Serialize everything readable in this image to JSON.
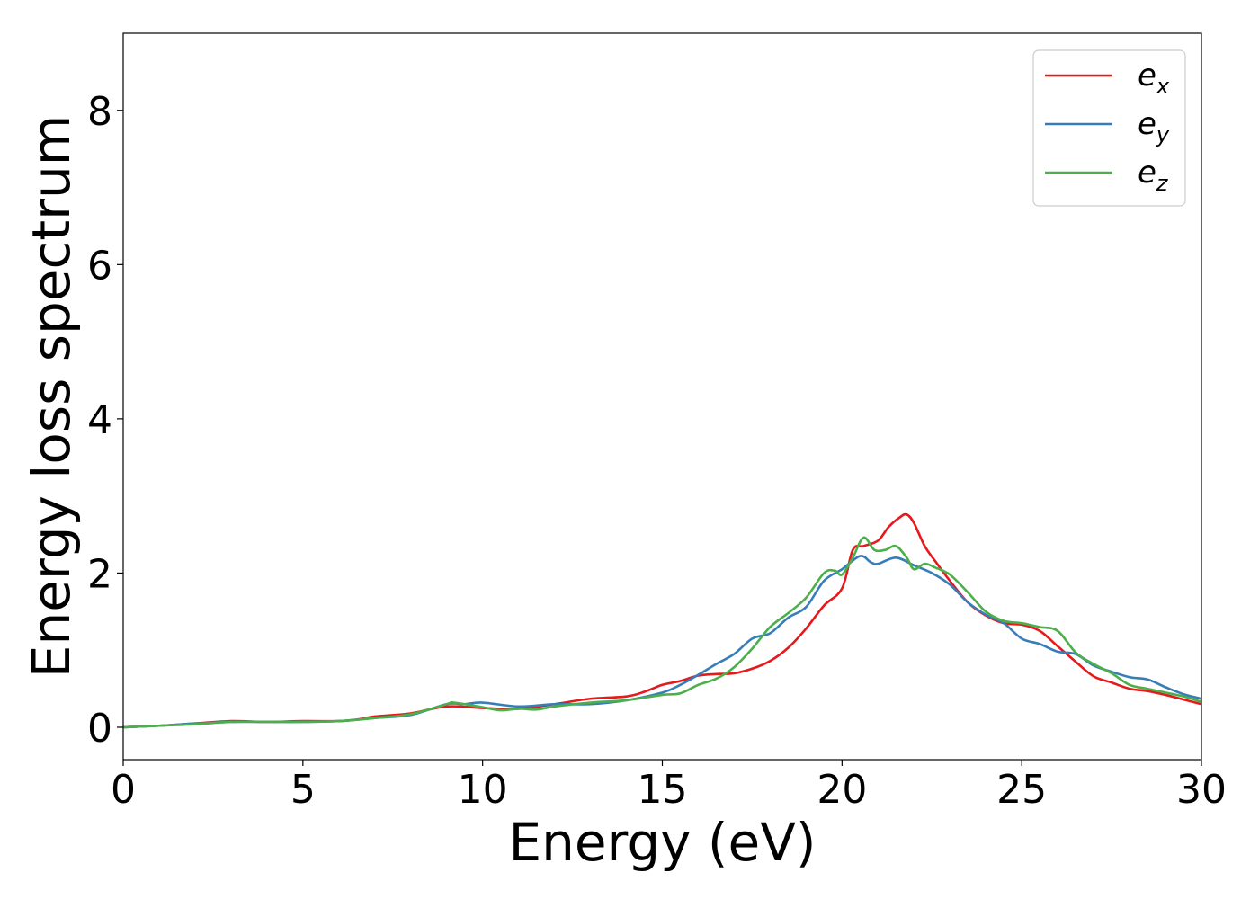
{
  "chart_data": {
    "type": "line",
    "title": "",
    "xlabel": "Energy (eV)",
    "ylabel": "Energy loss spectrum",
    "xlim": [
      0,
      30
    ],
    "ylim": [
      -0.42,
      9.0
    ],
    "xticks": [
      0,
      5,
      10,
      15,
      20,
      25,
      30
    ],
    "yticks": [
      0,
      2,
      4,
      6,
      8
    ],
    "grid": false,
    "legend_position": "top-right",
    "series": [
      {
        "name": "e_x",
        "label_base": "e",
        "label_sub": "x",
        "color": "#e41a1c",
        "x": [
          0,
          1,
          2,
          3,
          4,
          5,
          6,
          6.5,
          7,
          8,
          9,
          10,
          11,
          12,
          13,
          14,
          14.5,
          15,
          15.5,
          16,
          16.5,
          17,
          17.5,
          18,
          18.5,
          19,
          19.5,
          20,
          20.3,
          20.6,
          21,
          21.3,
          21.6,
          21.8,
          22,
          22.3,
          22.6,
          23,
          23.5,
          24,
          24.5,
          25,
          25.5,
          26,
          26.5,
          27,
          27.5,
          28,
          28.5,
          29,
          29.5,
          30
        ],
        "y": [
          0,
          0.02,
          0.05,
          0.08,
          0.07,
          0.08,
          0.08,
          0.1,
          0.14,
          0.18,
          0.27,
          0.25,
          0.24,
          0.3,
          0.37,
          0.4,
          0.46,
          0.55,
          0.6,
          0.67,
          0.69,
          0.7,
          0.76,
          0.86,
          1.03,
          1.28,
          1.58,
          1.8,
          2.3,
          2.35,
          2.42,
          2.6,
          2.72,
          2.76,
          2.65,
          2.35,
          2.15,
          1.9,
          1.62,
          1.45,
          1.35,
          1.33,
          1.25,
          1.05,
          0.85,
          0.66,
          0.58,
          0.5,
          0.47,
          0.42,
          0.36,
          0.3
        ]
      },
      {
        "name": "e_y",
        "label_base": "e",
        "label_sub": "y",
        "color": "#377eb8",
        "x": [
          0,
          1,
          2,
          3,
          4,
          5,
          6,
          7,
          8,
          9,
          9.5,
          10,
          11,
          12,
          13,
          14,
          15,
          15.5,
          16,
          16.5,
          17,
          17.5,
          18,
          18.5,
          19,
          19.5,
          20,
          20.5,
          20.8,
          21,
          21.5,
          22,
          22.5,
          23,
          23.5,
          24,
          24.5,
          25,
          25.5,
          26,
          26.5,
          27,
          27.5,
          28,
          28.5,
          29,
          29.5,
          30
        ],
        "y": [
          0,
          0.02,
          0.05,
          0.07,
          0.07,
          0.07,
          0.08,
          0.12,
          0.16,
          0.3,
          0.3,
          0.32,
          0.27,
          0.3,
          0.3,
          0.35,
          0.45,
          0.55,
          0.68,
          0.82,
          0.95,
          1.15,
          1.22,
          1.42,
          1.56,
          1.9,
          2.05,
          2.22,
          2.14,
          2.12,
          2.2,
          2.1,
          2.0,
          1.85,
          1.62,
          1.46,
          1.35,
          1.15,
          1.08,
          0.98,
          0.95,
          0.8,
          0.72,
          0.65,
          0.62,
          0.52,
          0.43,
          0.37
        ]
      },
      {
        "name": "e_z",
        "label_base": "e",
        "label_sub": "z",
        "color": "#4daf4a",
        "x": [
          0,
          1,
          2,
          3,
          4,
          5,
          6,
          7,
          8,
          9,
          9.2,
          10,
          10.5,
          11,
          11.5,
          12,
          13,
          14,
          15,
          15.5,
          16,
          16.5,
          17,
          17.5,
          18,
          18.5,
          19,
          19.5,
          19.8,
          20,
          20.3,
          20.6,
          20.9,
          21.2,
          21.5,
          21.8,
          22,
          22.3,
          22.6,
          23,
          23.5,
          24,
          24.5,
          25,
          25.5,
          26,
          26.5,
          27,
          27.5,
          28,
          28.5,
          29,
          29.5,
          30
        ],
        "y": [
          0,
          0.02,
          0.04,
          0.07,
          0.07,
          0.07,
          0.08,
          0.12,
          0.17,
          0.3,
          0.32,
          0.26,
          0.22,
          0.24,
          0.23,
          0.27,
          0.32,
          0.35,
          0.42,
          0.44,
          0.55,
          0.63,
          0.78,
          1.02,
          1.3,
          1.48,
          1.68,
          2.0,
          2.03,
          1.98,
          2.2,
          2.46,
          2.3,
          2.3,
          2.35,
          2.2,
          2.05,
          2.12,
          2.07,
          1.98,
          1.75,
          1.5,
          1.38,
          1.35,
          1.3,
          1.25,
          0.97,
          0.82,
          0.7,
          0.55,
          0.5,
          0.45,
          0.4,
          0.33
        ]
      }
    ]
  }
}
